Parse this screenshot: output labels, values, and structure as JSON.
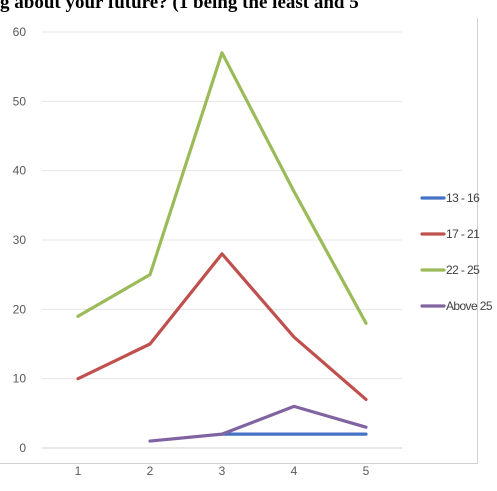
{
  "header": {
    "title_fragment": "g about your future? (1 being the least and 5"
  },
  "chart_data": {
    "type": "line",
    "x": [
      1,
      2,
      3,
      4,
      5
    ],
    "x_tick_labels": [
      "1",
      "2",
      "3",
      "4",
      "5"
    ],
    "y_ticks": [
      0,
      10,
      20,
      30,
      40,
      50,
      60
    ],
    "y_tick_labels": [
      "0",
      "10",
      "20",
      "30",
      "40",
      "50",
      "60"
    ],
    "ylim": [
      0,
      60
    ],
    "grid": true,
    "legend_position": "right",
    "series": [
      {
        "name": "13 - 16",
        "color": "#4472c4",
        "values": [
          null,
          null,
          2,
          2,
          2
        ]
      },
      {
        "name": "17 - 21",
        "color": "#c0504d",
        "values": [
          10,
          15,
          28,
          16,
          7
        ]
      },
      {
        "name": "22 - 25",
        "color": "#9bbb59",
        "values": [
          19,
          25,
          57,
          37,
          18
        ]
      },
      {
        "name": "Above 25",
        "color": "#8064a2",
        "values": [
          null,
          1,
          2,
          6,
          3
        ]
      }
    ]
  }
}
